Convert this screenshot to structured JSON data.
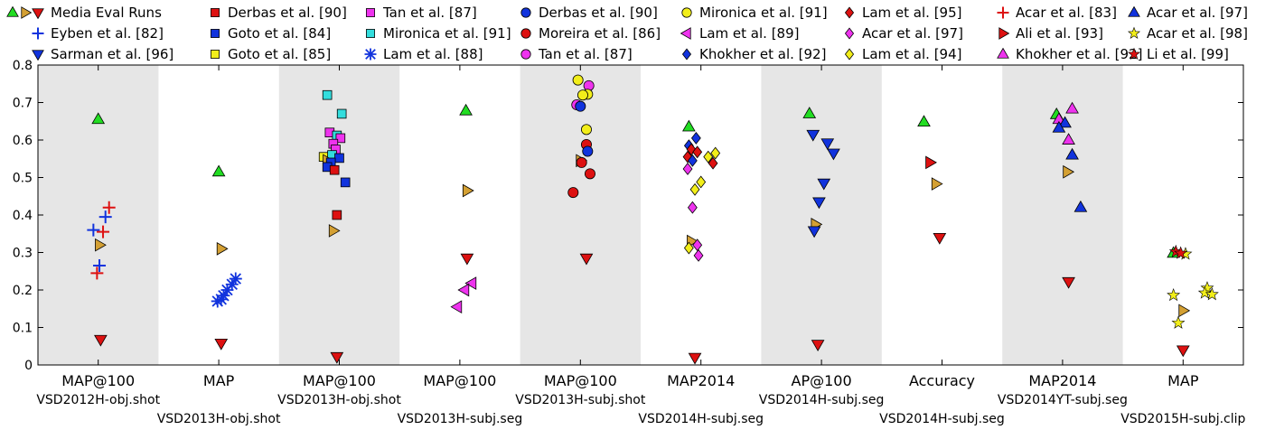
{
  "chart_data": {
    "type": "scatter",
    "ylim": [
      0,
      0.8
    ],
    "yticks": [
      "0",
      "0.1",
      "0.2",
      "0.3",
      "0.4",
      "0.5",
      "0.6",
      "0.7",
      "0.8"
    ],
    "grid": false,
    "legend_position": "top",
    "shaded_bands": [
      1,
      3,
      5,
      7,
      9
    ],
    "legend": [
      {
        "key": "media",
        "label": "Media Eval Runs"
      },
      {
        "key": "eyben82",
        "label": "Eyben et al. [82]"
      },
      {
        "key": "sarman96",
        "label": "Sarman et al. [96]"
      },
      {
        "key": "derbas90sq",
        "label": "Derbas et al. [90]"
      },
      {
        "key": "goto84",
        "label": "Goto et al. [84]"
      },
      {
        "key": "goto85",
        "label": "Goto et al. [85]"
      },
      {
        "key": "tan87sq",
        "label": "Tan et al. [87]"
      },
      {
        "key": "mironica91sq",
        "label": "Mironica et al. [91]"
      },
      {
        "key": "lam88",
        "label": "Lam et al. [88]"
      },
      {
        "key": "derbas90c",
        "label": "Derbas et al. [90]"
      },
      {
        "key": "moreira86",
        "label": "Moreira et al. [86]"
      },
      {
        "key": "tan87c",
        "label": "Tan et al. [87]"
      },
      {
        "key": "mironica91c",
        "label": "Mironica et al. [91]"
      },
      {
        "key": "lam89",
        "label": "Lam et al. [89]"
      },
      {
        "key": "khokher92d",
        "label": "Khokher et al. [92]"
      },
      {
        "key": "lam95",
        "label": "Lam et al. [95]"
      },
      {
        "key": "acar97d",
        "label": "Acar et al. [97]"
      },
      {
        "key": "lam94",
        "label": "Lam et al. [94]"
      },
      {
        "key": "acar83",
        "label": "Acar et al. [83]"
      },
      {
        "key": "ali93",
        "label": "Ali et al. [93]"
      },
      {
        "key": "khokher92t",
        "label": "Khokher et al. [92]"
      },
      {
        "key": "acar97t",
        "label": "Acar et al. [97]"
      },
      {
        "key": "acar98",
        "label": "Acar et al. [98]"
      },
      {
        "key": "li99",
        "label": "Li et al. [99]"
      }
    ],
    "groups": [
      {
        "metric": "MAP@100",
        "dataset": "VSD2012H-obj.shot",
        "points": [
          {
            "s": "gup",
            "y": 0.655
          },
          {
            "s": "yright",
            "dx": 0.01,
            "y": 0.32
          },
          {
            "s": "rdown",
            "dx": 0.02,
            "y": 0.068
          },
          {
            "s": "eyben82",
            "dx": -0.04,
            "y": 0.36
          },
          {
            "s": "eyben82",
            "dx": 0.06,
            "y": 0.395
          },
          {
            "s": "eyben82",
            "dx": 0.01,
            "y": 0.265
          },
          {
            "s": "acar83",
            "dx": 0.09,
            "y": 0.42
          },
          {
            "s": "acar83",
            "dx": 0.04,
            "y": 0.355
          },
          {
            "s": "acar83",
            "dx": -0.01,
            "y": 0.245
          }
        ]
      },
      {
        "metric": "MAP",
        "dataset": "VSD2013H-obj.shot",
        "points": [
          {
            "s": "gup",
            "y": 0.515
          },
          {
            "s": "yright",
            "dx": 0.02,
            "y": 0.31
          },
          {
            "s": "rdown",
            "dx": 0.02,
            "y": 0.058
          },
          {
            "s": "lam88",
            "dx": 0.14,
            "y": 0.23
          },
          {
            "s": "lam88",
            "dx": 0.11,
            "y": 0.215
          },
          {
            "s": "lam88",
            "dx": 0.07,
            "y": 0.2
          },
          {
            "s": "lam88",
            "dx": 0.04,
            "y": 0.185
          },
          {
            "s": "lam88",
            "dx": 0.02,
            "y": 0.175
          },
          {
            "s": "lam88",
            "dx": -0.01,
            "y": 0.17
          }
        ]
      },
      {
        "metric": "MAP@100",
        "dataset": "VSD2013H-obj.shot",
        "points": [
          {
            "s": "mironica91sq",
            "dx": -0.1,
            "y": 0.72
          },
          {
            "s": "mironica91sq",
            "dx": 0.02,
            "y": 0.67
          },
          {
            "s": "tan87sq",
            "dx": -0.08,
            "y": 0.62
          },
          {
            "s": "mironica91sq",
            "dx": -0.02,
            "y": 0.612
          },
          {
            "s": "tan87sq",
            "dx": 0.01,
            "y": 0.605
          },
          {
            "s": "tan87sq",
            "dx": -0.05,
            "y": 0.59
          },
          {
            "s": "tan87sq",
            "dx": -0.03,
            "y": 0.575
          },
          {
            "s": "goto85",
            "dx": -0.13,
            "y": 0.555
          },
          {
            "s": "mironica91sq",
            "dx": -0.06,
            "y": 0.56
          },
          {
            "s": "yright",
            "dx": -0.1,
            "y": 0.545
          },
          {
            "s": "goto84",
            "dx": 0.0,
            "y": 0.552
          },
          {
            "s": "goto84",
            "dx": -0.07,
            "y": 0.54
          },
          {
            "s": "goto84",
            "dx": -0.1,
            "y": 0.528
          },
          {
            "s": "derbas90sq",
            "dx": -0.04,
            "y": 0.52
          },
          {
            "s": "goto84",
            "dx": 0.05,
            "y": 0.487
          },
          {
            "s": "derbas90sq",
            "dx": -0.02,
            "y": 0.4
          },
          {
            "s": "yright",
            "dx": -0.05,
            "y": 0.358
          },
          {
            "s": "rdown",
            "dx": -0.02,
            "y": 0.022
          }
        ]
      },
      {
        "metric": "MAP@100",
        "dataset": "VSD2013H-subj.seg",
        "points": [
          {
            "s": "gup",
            "dx": 0.05,
            "y": 0.678
          },
          {
            "s": "yright",
            "dx": 0.06,
            "y": 0.465
          },
          {
            "s": "rdown",
            "dx": 0.06,
            "y": 0.285
          },
          {
            "s": "lam89",
            "dx": 0.1,
            "y": 0.218
          },
          {
            "s": "lam89",
            "dx": 0.04,
            "y": 0.2
          },
          {
            "s": "lam89",
            "dx": -0.02,
            "y": 0.155
          }
        ]
      },
      {
        "metric": "MAP@100",
        "dataset": "VSD2013H-subj.shot",
        "points": [
          {
            "s": "mironica91c",
            "dx": -0.02,
            "y": 0.76
          },
          {
            "s": "tan87c",
            "dx": 0.07,
            "y": 0.745
          },
          {
            "s": "mironica91c",
            "dx": 0.06,
            "y": 0.722
          },
          {
            "s": "mironica91c",
            "dx": 0.02,
            "y": 0.72
          },
          {
            "s": "tan87c",
            "dx": -0.03,
            "y": 0.694
          },
          {
            "s": "derbas90c",
            "dx": 0.0,
            "y": 0.69
          },
          {
            "s": "mironica91c",
            "dx": 0.05,
            "y": 0.628
          },
          {
            "s": "moreira86",
            "dx": 0.05,
            "y": 0.588
          },
          {
            "s": "derbas90c",
            "dx": 0.06,
            "y": 0.57
          },
          {
            "s": "yright",
            "dx": 0.0,
            "y": 0.545
          },
          {
            "s": "moreira86",
            "dx": 0.01,
            "y": 0.54
          },
          {
            "s": "moreira86",
            "dx": 0.08,
            "y": 0.51
          },
          {
            "s": "moreira86",
            "dx": -0.06,
            "y": 0.46
          },
          {
            "s": "rdown",
            "dx": 0.05,
            "y": 0.285
          }
        ]
      },
      {
        "metric": "MAP2014",
        "dataset": "VSD2014H-subj.seg",
        "points": [
          {
            "s": "gup",
            "dx": -0.1,
            "y": 0.635
          },
          {
            "s": "khokher92d",
            "dx": -0.04,
            "y": 0.605
          },
          {
            "s": "khokher92d",
            "dx": -0.1,
            "y": 0.585
          },
          {
            "s": "lam95",
            "dx": -0.08,
            "y": 0.575
          },
          {
            "s": "lam95",
            "dx": -0.03,
            "y": 0.568
          },
          {
            "s": "lam94",
            "dx": 0.12,
            "y": 0.565
          },
          {
            "s": "lam94",
            "dx": 0.06,
            "y": 0.555
          },
          {
            "s": "lam95",
            "dx": -0.11,
            "y": 0.555
          },
          {
            "s": "khokher92d",
            "dx": -0.07,
            "y": 0.545
          },
          {
            "s": "lam95",
            "dx": 0.1,
            "y": 0.538
          },
          {
            "s": "acar97d",
            "dx": -0.11,
            "y": 0.523
          },
          {
            "s": "lam94",
            "dx": 0.0,
            "y": 0.488
          },
          {
            "s": "lam94",
            "dx": -0.05,
            "y": 0.468
          },
          {
            "s": "acar97d",
            "dx": -0.07,
            "y": 0.42
          },
          {
            "s": "yright",
            "dx": -0.08,
            "y": 0.33
          },
          {
            "s": "acar97d",
            "dx": -0.03,
            "y": 0.32
          },
          {
            "s": "lam94",
            "dx": -0.1,
            "y": 0.312
          },
          {
            "s": "acar97d",
            "dx": -0.02,
            "y": 0.292
          },
          {
            "s": "rdown",
            "dx": -0.05,
            "y": 0.02
          }
        ]
      },
      {
        "metric": "AP@100",
        "dataset": "VSD2014H-subj.seg",
        "points": [
          {
            "s": "gup",
            "dx": -0.1,
            "y": 0.67
          },
          {
            "s": "sarman96",
            "dx": -0.07,
            "y": 0.615
          },
          {
            "s": "sarman96",
            "dx": 0.05,
            "y": 0.592
          },
          {
            "s": "sarman96",
            "dx": 0.1,
            "y": 0.565
          },
          {
            "s": "sarman96",
            "dx": 0.02,
            "y": 0.485
          },
          {
            "s": "sarman96",
            "dx": -0.02,
            "y": 0.435
          },
          {
            "s": "yright",
            "dx": -0.05,
            "y": 0.375
          },
          {
            "s": "sarman96",
            "dx": -0.06,
            "y": 0.358
          },
          {
            "s": "rdown",
            "dx": -0.03,
            "y": 0.055
          }
        ]
      },
      {
        "metric": "Accuracy",
        "dataset": "VSD2014H-subj.seg",
        "points": [
          {
            "s": "gup",
            "dx": -0.15,
            "y": 0.648
          },
          {
            "s": "ali93",
            "dx": -0.1,
            "y": 0.54
          },
          {
            "s": "yright",
            "dx": -0.05,
            "y": 0.483
          },
          {
            "s": "rdown",
            "dx": -0.02,
            "y": 0.34
          }
        ]
      },
      {
        "metric": "MAP2014",
        "dataset": "VSD2014YT-subj.seg",
        "points": [
          {
            "s": "khokher92t",
            "dx": 0.08,
            "y": 0.683
          },
          {
            "s": "gup",
            "dx": -0.05,
            "y": 0.668
          },
          {
            "s": "khokher92t",
            "dx": -0.03,
            "y": 0.655
          },
          {
            "s": "acar97t",
            "dx": 0.02,
            "y": 0.645
          },
          {
            "s": "acar97t",
            "dx": -0.03,
            "y": 0.632
          },
          {
            "s": "khokher92t",
            "dx": 0.05,
            "y": 0.6
          },
          {
            "s": "acar97t",
            "dx": 0.08,
            "y": 0.56
          },
          {
            "s": "yright",
            "dx": 0.04,
            "y": 0.515
          },
          {
            "s": "acar97t",
            "dx": 0.15,
            "y": 0.42
          },
          {
            "s": "rdown",
            "dx": 0.05,
            "y": 0.222
          }
        ]
      },
      {
        "metric": "MAP",
        "dataset": "VSD2015H-subj.clip",
        "points": [
          {
            "s": "gup",
            "dx": -0.08,
            "y": 0.298
          },
          {
            "s": "li99",
            "dx": -0.06,
            "y": 0.302
          },
          {
            "s": "acar98",
            "dx": 0.02,
            "y": 0.296
          },
          {
            "s": "li99",
            "dx": -0.02,
            "y": 0.298
          },
          {
            "s": "acar98",
            "dx": 0.2,
            "y": 0.205
          },
          {
            "s": "acar98",
            "dx": 0.18,
            "y": 0.192
          },
          {
            "s": "acar98",
            "dx": 0.24,
            "y": 0.188
          },
          {
            "s": "acar98",
            "dx": -0.08,
            "y": 0.186
          },
          {
            "s": "yright",
            "dx": 0.0,
            "y": 0.145
          },
          {
            "s": "acar98",
            "dx": -0.04,
            "y": 0.112
          },
          {
            "s": "rdown",
            "dx": 0.0,
            "y": 0.04
          }
        ]
      }
    ]
  },
  "colors": {
    "red": "#dd1111",
    "blue": "#1133dd",
    "cyan": "#33dddd",
    "magenta": "#ee33ee",
    "yellow": "#f2ee1a",
    "green": "#22dd22",
    "tan": "#d4a033",
    "band": "#e6e6e6",
    "axis": "#000000"
  }
}
